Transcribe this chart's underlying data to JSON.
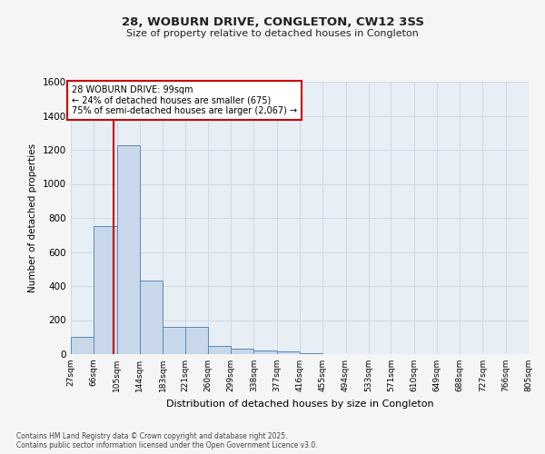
{
  "title_line1": "28, WOBURN DRIVE, CONGLETON, CW12 3SS",
  "title_line2": "Size of property relative to detached houses in Congleton",
  "xlabel": "Distribution of detached houses by size in Congleton",
  "ylabel": "Number of detached properties",
  "footnote": "Contains HM Land Registry data © Crown copyright and database right 2025.\nContains public sector information licensed under the Open Government Licence v3.0.",
  "bins": [
    27,
    66,
    105,
    144,
    183,
    221,
    260,
    299,
    338,
    377,
    416,
    455,
    494,
    533,
    571,
    610,
    649,
    688,
    727,
    766,
    805
  ],
  "bar_heights": [
    100,
    750,
    1225,
    430,
    160,
    160,
    50,
    30,
    20,
    15,
    5,
    2,
    1,
    0,
    0,
    0,
    0,
    0,
    0,
    0
  ],
  "bar_color": "#c8d8ea",
  "bar_edge_color": "#5a8ab5",
  "grid_color": "#d0d8e8",
  "bg_color": "#e8eef5",
  "fig_bg_color": "#f5f5f5",
  "property_line_x": 99,
  "property_line_color": "#cc0000",
  "annotation_text": "28 WOBURN DRIVE: 99sqm\n← 24% of detached houses are smaller (675)\n75% of semi-detached houses are larger (2,067) →",
  "annotation_box_color": "#ffffff",
  "annotation_box_edge": "#cc0000",
  "ylim": [
    0,
    1600
  ],
  "yticks": [
    0,
    200,
    400,
    600,
    800,
    1000,
    1200,
    1400,
    1600
  ],
  "tick_labels": [
    "27sqm",
    "66sqm",
    "105sqm",
    "144sqm",
    "183sqm",
    "221sqm",
    "260sqm",
    "299sqm",
    "338sqm",
    "377sqm",
    "416sqm",
    "455sqm",
    "494sqm",
    "533sqm",
    "571sqm",
    "610sqm",
    "649sqm",
    "688sqm",
    "727sqm",
    "766sqm",
    "805sqm"
  ]
}
